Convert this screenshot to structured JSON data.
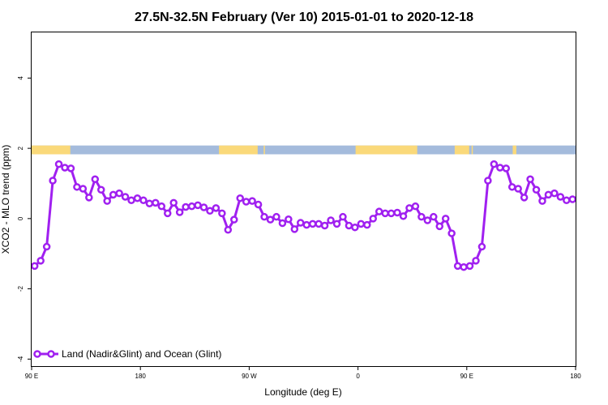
{
  "chart_data": {
    "type": "line",
    "title": "27.5N-32.5N February (Ver 10)   2015-01-01 to 2020-12-18",
    "xlabel": "Longitude (deg E)",
    "ylabel": "XCO2 - MLO trend (ppm)",
    "xlim": [
      90,
      540
    ],
    "ylim": [
      -4.2,
      5.3
    ],
    "x_ticks": [
      {
        "value": 90,
        "label": "90 E"
      },
      {
        "value": 180,
        "label": "180"
      },
      {
        "value": 270,
        "label": "90 W"
      },
      {
        "value": 360,
        "label": "0"
      },
      {
        "value": 450,
        "label": "90 E"
      },
      {
        "value": 540,
        "label": "180"
      }
    ],
    "y_ticks": [
      {
        "value": -4,
        "label": "-4"
      },
      {
        "value": -2,
        "label": "-2"
      },
      {
        "value": 0,
        "label": "0"
      },
      {
        "value": 2,
        "label": "2"
      },
      {
        "value": 4,
        "label": "4"
      }
    ],
    "land_ocean_band": {
      "y_range": [
        1.83,
        2.08
      ],
      "land_color": "#fad97a",
      "ocean_color": "#a4bbdc",
      "land_segments": [
        [
          90,
          122
        ],
        [
          245,
          277
        ],
        [
          282,
          283
        ],
        [
          358,
          409
        ],
        [
          440,
          452
        ],
        [
          454,
          455
        ],
        [
          488,
          491
        ]
      ]
    },
    "legend": {
      "position": "bottom-left",
      "label": "Land (Nadir&Glint) and Ocean (Glint)"
    },
    "series": [
      {
        "name": "Land (Nadir&Glint) and Ocean (Glint)",
        "color": "#a020f0",
        "x": [
          92.5,
          97.5,
          102.5,
          107.5,
          112.5,
          117.5,
          122.5,
          127.5,
          132.5,
          137.5,
          142.5,
          147.5,
          152.5,
          157.5,
          162.5,
          167.5,
          172.5,
          177.5,
          182.5,
          187.5,
          192.5,
          197.5,
          202.5,
          207.5,
          212.5,
          217.5,
          222.5,
          227.5,
          232.5,
          237.5,
          242.5,
          247.5,
          252.5,
          257.5,
          262.5,
          267.5,
          272.5,
          277.5,
          282.5,
          287.5,
          292.5,
          297.5,
          302.5,
          307.5,
          312.5,
          317.5,
          322.5,
          327.5,
          332.5,
          337.5,
          342.5,
          347.5,
          352.5,
          357.5,
          362.5,
          367.5,
          372.5,
          377.5,
          382.5,
          387.5,
          392.5,
          397.5,
          402.5,
          407.5,
          412.5,
          417.5,
          422.5,
          427.5,
          432.5,
          437.5,
          442.5,
          447.5,
          452.5,
          457.5,
          462.5,
          467.5,
          472.5,
          477.5,
          482.5,
          487.5,
          492.5,
          497.5,
          502.5,
          507.5,
          512.5,
          517.5,
          522.5,
          527.5,
          532.5,
          537.5
        ],
        "values": [
          -1.35,
          -1.2,
          -0.8,
          1.08,
          1.55,
          1.45,
          1.43,
          0.9,
          0.85,
          0.6,
          1.12,
          0.82,
          0.5,
          0.68,
          0.72,
          0.62,
          0.52,
          0.58,
          0.52,
          0.43,
          0.45,
          0.35,
          0.15,
          0.45,
          0.18,
          0.33,
          0.35,
          0.38,
          0.32,
          0.22,
          0.3,
          0.15,
          -0.32,
          -0.03,
          0.58,
          0.48,
          0.5,
          0.4,
          0.05,
          -0.03,
          0.05,
          -0.13,
          -0.02,
          -0.3,
          -0.12,
          -0.18,
          -0.15,
          -0.15,
          -0.2,
          -0.05,
          -0.15,
          0.05,
          -0.2,
          -0.25,
          -0.15,
          -0.18,
          0.0,
          0.2,
          0.15,
          0.15,
          0.17,
          0.07,
          0.3,
          0.35,
          0.05,
          -0.05,
          0.05,
          -0.22,
          0.0,
          -0.42,
          -1.35,
          -1.38,
          -1.35,
          -1.2,
          -0.8,
          1.08,
          1.55,
          1.45,
          1.43,
          0.9,
          0.85,
          0.6,
          1.12,
          0.82,
          0.5,
          0.68,
          0.72,
          0.62,
          0.52,
          0.55
        ]
      }
    ]
  }
}
